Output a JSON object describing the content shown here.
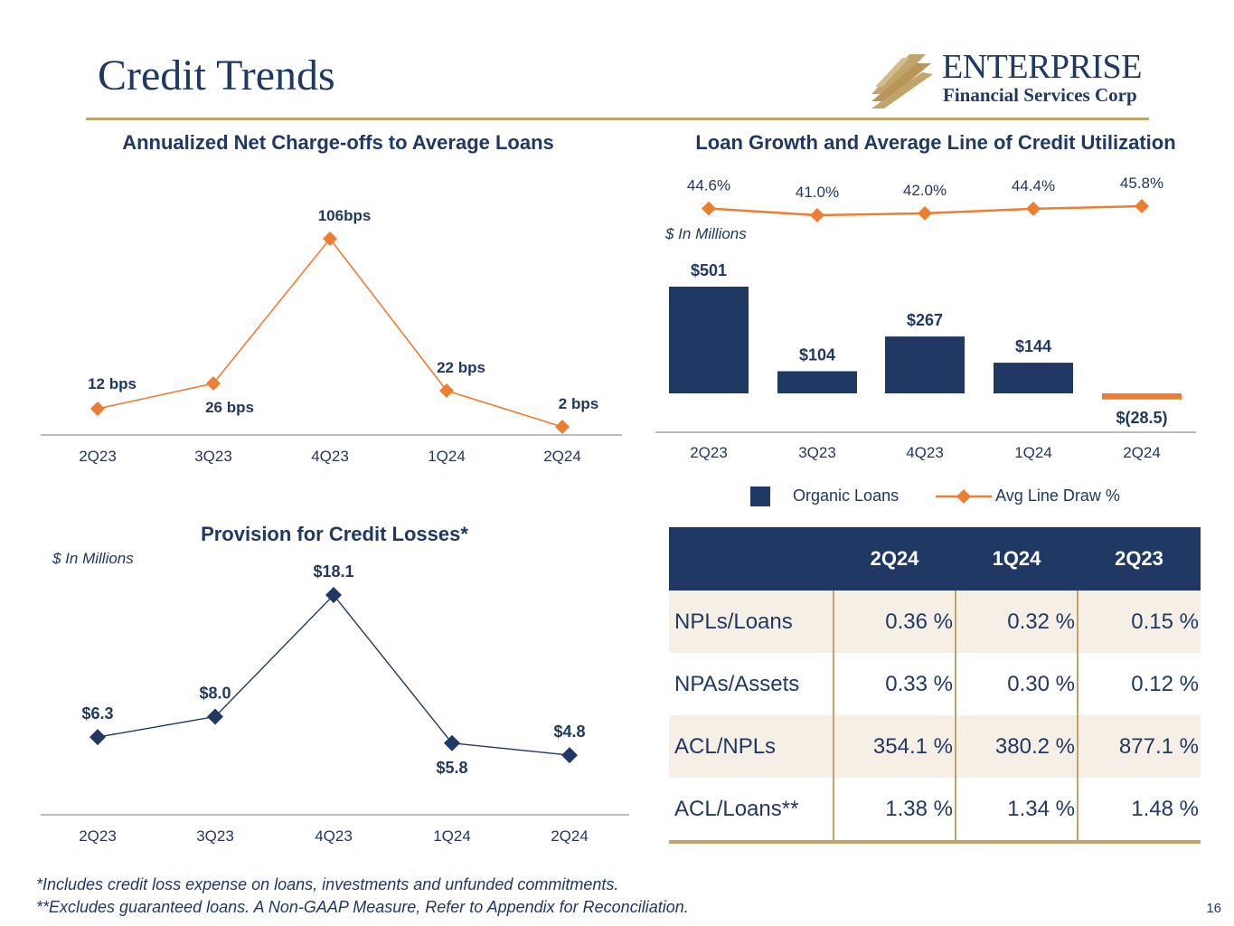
{
  "header": {
    "title": "Credit Trends",
    "logo_name": "ENTERPRISE",
    "logo_sub": "Financial Services Corp"
  },
  "colors": {
    "navy": "#1f3864",
    "orange": "#ed7d31",
    "gold": "#c0a46b",
    "row_shade": "#f6efe6"
  },
  "chart_data": [
    {
      "id": "net-charge-offs",
      "type": "line",
      "title": "Annualized Net Charge-offs to Average Loans",
      "categories": [
        "2Q23",
        "3Q23",
        "4Q23",
        "1Q24",
        "2Q24"
      ],
      "values": [
        12,
        26,
        106,
        22,
        2
      ],
      "labels": [
        "12 bps",
        "26 bps",
        "106bps",
        "22 bps",
        "2 bps"
      ],
      "unit": "bps",
      "ylim": [
        0,
        120
      ],
      "color": "#ed7d31",
      "marker": "diamond",
      "legend": "none",
      "grid": false
    },
    {
      "id": "loan-growth",
      "type": "bar+line",
      "title": "Loan Growth and Average Line of Credit Utilization",
      "units_note": "$ In Millions",
      "categories": [
        "2Q23",
        "3Q23",
        "4Q23",
        "1Q24",
        "2Q24"
      ],
      "series": [
        {
          "name": "Organic Loans",
          "type": "bar",
          "values": [
            501,
            104,
            267,
            144,
            -28.5
          ],
          "labels": [
            "$501",
            "$104",
            "$267",
            "$144",
            "$(28.5)"
          ],
          "color": "#1f3864",
          "negative_color": "#ed7d31"
        },
        {
          "name": "Avg Line Draw %",
          "type": "line",
          "values": [
            44.6,
            41.0,
            42.0,
            44.4,
            45.8
          ],
          "labels": [
            "44.6%",
            "41.0%",
            "42.0%",
            "44.4%",
            "45.8%"
          ],
          "color": "#ed7d31",
          "marker": "diamond"
        }
      ],
      "legend": "bottom",
      "grid": false
    },
    {
      "id": "provision",
      "type": "line",
      "title": "Provision for Credit Losses*",
      "units_note": "$ In Millions",
      "categories": [
        "2Q23",
        "3Q23",
        "4Q23",
        "1Q24",
        "2Q24"
      ],
      "values": [
        6.3,
        8.0,
        18.1,
        5.8,
        4.8
      ],
      "labels": [
        "$6.3",
        "$8.0",
        "$18.1",
        "$5.8",
        "$4.8"
      ],
      "ylim": [
        0,
        22
      ],
      "color": "#1f3864",
      "marker": "diamond",
      "legend": "none",
      "grid": false
    },
    {
      "id": "credit-metrics",
      "type": "table",
      "columns": [
        "",
        "2Q24",
        "1Q24",
        "2Q23"
      ],
      "rows": [
        {
          "label": "NPLs/Loans",
          "values": [
            "0.36 %",
            "0.32 %",
            "0.15 %"
          ]
        },
        {
          "label": "NPAs/Assets",
          "values": [
            "0.33 %",
            "0.30 %",
            "0.12 %"
          ]
        },
        {
          "label": "ACL/NPLs",
          "values": [
            "354.1 %",
            "380.2 %",
            "877.1 %"
          ]
        },
        {
          "label": "ACL/Loans**",
          "values": [
            "1.38 %",
            "1.34 %",
            "1.48 %"
          ]
        }
      ]
    }
  ],
  "footnotes": [
    "*Includes credit loss expense on loans, investments and unfunded commitments.",
    "**Excludes guaranteed loans. A Non-GAAP Measure, Refer to Appendix for Reconciliation."
  ],
  "page_number": "16"
}
